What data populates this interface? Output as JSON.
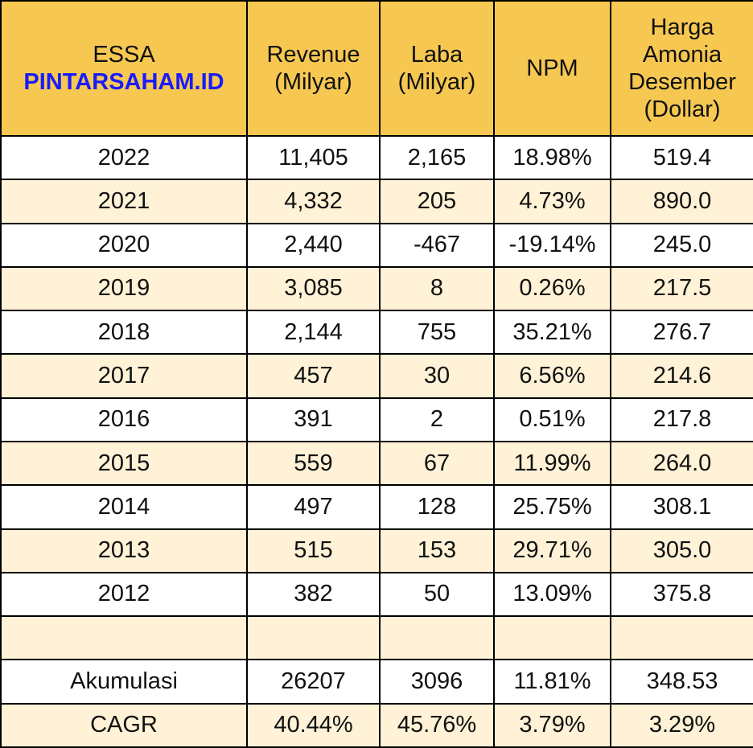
{
  "header": {
    "brand_title": "ESSA",
    "brand_site": "PINTARSAHAM.ID",
    "columns": [
      [
        "Revenue",
        "(Milyar)"
      ],
      [
        "Laba",
        "(Milyar)"
      ],
      [
        "NPM"
      ],
      [
        "Harga",
        "Amonia",
        "Desember",
        "(Dollar)"
      ]
    ]
  },
  "table": {
    "rows": [
      [
        "2022",
        "11,405",
        "2,165",
        "18.98%",
        "519.4"
      ],
      [
        "2021",
        "4,332",
        "205",
        "4.73%",
        "890.0"
      ],
      [
        "2020",
        "2,440",
        "-467",
        "-19.14%",
        "245.0"
      ],
      [
        "2019",
        "3,085",
        "8",
        "0.26%",
        "217.5"
      ],
      [
        "2018",
        "2,144",
        "755",
        "35.21%",
        "276.7"
      ],
      [
        "2017",
        "457",
        "30",
        "6.56%",
        "214.6"
      ],
      [
        "2016",
        "391",
        "2",
        "0.51%",
        "217.8"
      ],
      [
        "2015",
        "559",
        "67",
        "11.99%",
        "264.0"
      ],
      [
        "2014",
        "497",
        "128",
        "25.75%",
        "308.1"
      ],
      [
        "2013",
        "515",
        "153",
        "29.71%",
        "305.0"
      ],
      [
        "2012",
        "382",
        "50",
        "13.09%",
        "375.8"
      ]
    ],
    "summary": [
      [
        "Akumulasi",
        "26207",
        "3096",
        "11.81%",
        "348.53"
      ],
      [
        "CAGR",
        "40.44%",
        "45.76%",
        "3.79%",
        "3.29%"
      ]
    ]
  }
}
